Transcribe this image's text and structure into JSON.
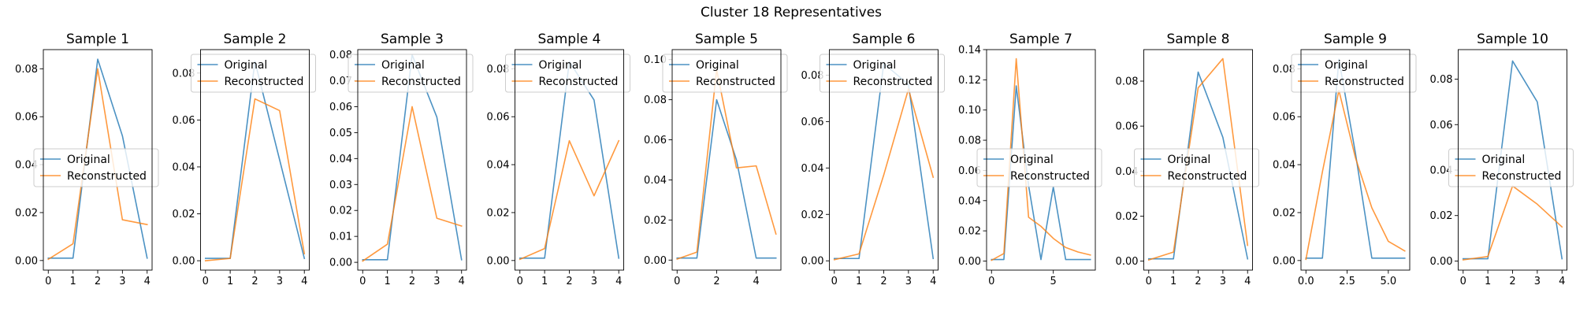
{
  "figure_title": "Cluster 18 Representatives",
  "colors": {
    "original": "#1f77b4",
    "reconstructed": "#ff7f0e"
  },
  "chart_data": [
    {
      "type": "line",
      "title": "Sample 1",
      "xlim": [
        -0.2,
        4.2
      ],
      "ylim": [
        -0.004,
        0.088
      ],
      "xticks": [
        0,
        1,
        2,
        3,
        4
      ],
      "xticklabels": [
        "0",
        "1",
        "2",
        "3",
        "4"
      ],
      "yticks": [
        0.0,
        0.02,
        0.04,
        0.06,
        0.08
      ],
      "yticklabels": [
        "0.00",
        "0.02",
        "0.04",
        "0.06",
        "0.08"
      ],
      "legend": "center-left",
      "series": [
        {
          "name": "Original",
          "x": [
            0,
            1,
            2,
            3,
            4
          ],
          "y": [
            0.001,
            0.001,
            0.084,
            0.052,
            0.001
          ]
        },
        {
          "name": "Reconstructed",
          "x": [
            0,
            1,
            2,
            3,
            4
          ],
          "y": [
            0.0005,
            0.007,
            0.08,
            0.017,
            0.015
          ]
        }
      ]
    },
    {
      "type": "line",
      "title": "Sample 2",
      "xlim": [
        -0.2,
        4.2
      ],
      "ylim": [
        -0.004,
        0.09
      ],
      "xticks": [
        0,
        1,
        2,
        3,
        4
      ],
      "xticklabels": [
        "0",
        "1",
        "2",
        "3",
        "4"
      ],
      "yticks": [
        0.0,
        0.02,
        0.04,
        0.06,
        0.08
      ],
      "yticklabels": [
        "0.00",
        "0.02",
        "0.04",
        "0.06",
        "0.08"
      ],
      "legend": "top-left",
      "series": [
        {
          "name": "Original",
          "x": [
            0,
            1,
            2,
            3,
            4
          ],
          "y": [
            0.001,
            0.001,
            0.085,
            0.043,
            0.001
          ]
        },
        {
          "name": "Reconstructed",
          "x": [
            0,
            1,
            2,
            3,
            4
          ],
          "y": [
            0.0,
            0.001,
            0.069,
            0.064,
            0.003
          ]
        }
      ]
    },
    {
      "type": "line",
      "title": "Sample 3",
      "xlim": [
        -0.2,
        4.2
      ],
      "ylim": [
        -0.003,
        0.082
      ],
      "xticks": [
        0,
        1,
        2,
        3,
        4
      ],
      "xticklabels": [
        "0",
        "1",
        "2",
        "3",
        "4"
      ],
      "yticks": [
        0.0,
        0.01,
        0.02,
        0.03,
        0.04,
        0.05,
        0.06,
        0.07,
        0.08
      ],
      "yticklabels": [
        "0.00",
        "0.01",
        "0.02",
        "0.03",
        "0.04",
        "0.05",
        "0.06",
        "0.07",
        "0.08"
      ],
      "legend": "top-left",
      "series": [
        {
          "name": "Original",
          "x": [
            0,
            1,
            2,
            3,
            4
          ],
          "y": [
            0.001,
            0.001,
            0.08,
            0.056,
            0.001
          ]
        },
        {
          "name": "Reconstructed",
          "x": [
            0,
            1,
            2,
            3,
            4
          ],
          "y": [
            0.0005,
            0.007,
            0.06,
            0.017,
            0.014
          ]
        }
      ]
    },
    {
      "type": "line",
      "title": "Sample 4",
      "xlim": [
        -0.2,
        4.2
      ],
      "ylim": [
        -0.004,
        0.088
      ],
      "xticks": [
        0,
        1,
        2,
        3,
        4
      ],
      "xticklabels": [
        "0",
        "1",
        "2",
        "3",
        "4"
      ],
      "yticks": [
        0.0,
        0.02,
        0.04,
        0.06,
        0.08
      ],
      "yticklabels": [
        "0.00",
        "0.02",
        "0.04",
        "0.06",
        "0.08"
      ],
      "legend": "top-left",
      "series": [
        {
          "name": "Original",
          "x": [
            0,
            1,
            2,
            3,
            4
          ],
          "y": [
            0.001,
            0.001,
            0.083,
            0.067,
            0.001
          ]
        },
        {
          "name": "Reconstructed",
          "x": [
            0,
            1,
            2,
            3,
            4
          ],
          "y": [
            0.0005,
            0.005,
            0.05,
            0.027,
            0.05
          ]
        }
      ]
    },
    {
      "type": "line",
      "title": "Sample 5",
      "xlim": [
        -0.25,
        5.25
      ],
      "ylim": [
        -0.005,
        0.105
      ],
      "xticks": [
        0,
        2,
        4
      ],
      "xticklabels": [
        "0",
        "2",
        "4"
      ],
      "yticks": [
        0.0,
        0.02,
        0.04,
        0.06,
        0.08,
        0.1
      ],
      "yticklabels": [
        "0.00",
        "0.02",
        "0.04",
        "0.06",
        "0.08",
        "0.10"
      ],
      "legend": "top-left",
      "series": [
        {
          "name": "Original",
          "x": [
            0,
            1,
            2,
            3,
            4,
            5
          ],
          "y": [
            0.001,
            0.001,
            0.08,
            0.05,
            0.001,
            0.001
          ]
        },
        {
          "name": "Reconstructed",
          "x": [
            0,
            1,
            2,
            3,
            4,
            5
          ],
          "y": [
            0.0005,
            0.004,
            0.095,
            0.046,
            0.047,
            0.013
          ]
        }
      ]
    },
    {
      "type": "line",
      "title": "Sample 6",
      "xlim": [
        -0.2,
        4.2
      ],
      "ylim": [
        -0.004,
        0.091
      ],
      "xticks": [
        0,
        1,
        2,
        3,
        4
      ],
      "xticklabels": [
        "0",
        "1",
        "2",
        "3",
        "4"
      ],
      "yticks": [
        0.0,
        0.02,
        0.04,
        0.06,
        0.08
      ],
      "yticklabels": [
        "0.00",
        "0.02",
        "0.04",
        "0.06",
        "0.08"
      ],
      "legend": "top-left",
      "series": [
        {
          "name": "Original",
          "x": [
            0,
            1,
            2,
            3,
            4
          ],
          "y": [
            0.001,
            0.001,
            0.085,
            0.076,
            0.001
          ]
        },
        {
          "name": "Reconstructed",
          "x": [
            0,
            1,
            2,
            3,
            4
          ],
          "y": [
            0.0005,
            0.003,
            0.037,
            0.074,
            0.036
          ]
        }
      ]
    },
    {
      "type": "line",
      "title": "Sample 7",
      "xlim": [
        -0.4,
        8.4
      ],
      "ylim": [
        -0.006,
        0.14
      ],
      "xticks": [
        0,
        5
      ],
      "xticklabels": [
        "0",
        "5"
      ],
      "yticks": [
        0.0,
        0.02,
        0.04,
        0.06,
        0.08,
        0.1,
        0.12,
        0.14
      ],
      "yticklabels": [
        "0.00",
        "0.02",
        "0.04",
        "0.06",
        "0.08",
        "0.10",
        "0.12",
        "0.14"
      ],
      "legend": "center-left",
      "series": [
        {
          "name": "Original",
          "x": [
            0,
            1,
            2,
            3,
            4,
            5,
            6,
            7,
            8
          ],
          "y": [
            0.001,
            0.001,
            0.116,
            0.05,
            0.001,
            0.049,
            0.001,
            0.001,
            0.001
          ]
        },
        {
          "name": "Reconstructed",
          "x": [
            0,
            1,
            2,
            3,
            4,
            5,
            6,
            7,
            8
          ],
          "y": [
            0.0005,
            0.005,
            0.134,
            0.029,
            0.023,
            0.015,
            0.009,
            0.006,
            0.004
          ]
        }
      ]
    },
    {
      "type": "line",
      "title": "Sample 8",
      "xlim": [
        -0.2,
        4.2
      ],
      "ylim": [
        -0.004,
        0.094
      ],
      "xticks": [
        0,
        1,
        2,
        3,
        4
      ],
      "xticklabels": [
        "0",
        "1",
        "2",
        "3",
        "4"
      ],
      "yticks": [
        0.0,
        0.02,
        0.04,
        0.06,
        0.08
      ],
      "yticklabels": [
        "0.00",
        "0.02",
        "0.04",
        "0.06",
        "0.08"
      ],
      "legend": "center-left",
      "series": [
        {
          "name": "Original",
          "x": [
            0,
            1,
            2,
            3,
            4
          ],
          "y": [
            0.001,
            0.001,
            0.084,
            0.055,
            0.001
          ]
        },
        {
          "name": "Reconstructed",
          "x": [
            0,
            1,
            2,
            3,
            4
          ],
          "y": [
            0.0005,
            0.004,
            0.077,
            0.09,
            0.007
          ]
        }
      ]
    },
    {
      "type": "line",
      "title": "Sample 9",
      "xlim": [
        -0.3,
        6.3
      ],
      "ylim": [
        -0.004,
        0.088
      ],
      "xticks": [
        0,
        2.5,
        5
      ],
      "xticklabels": [
        "0.0",
        "2.5",
        "5.0"
      ],
      "yticks": [
        0.0,
        0.02,
        0.04,
        0.06,
        0.08
      ],
      "yticklabels": [
        "0.00",
        "0.02",
        "0.04",
        "0.06",
        "0.08"
      ],
      "legend": "top-left",
      "series": [
        {
          "name": "Original",
          "x": [
            0,
            1,
            2,
            3,
            4,
            5,
            6
          ],
          "y": [
            0.001,
            0.001,
            0.084,
            0.045,
            0.001,
            0.001,
            0.001
          ]
        },
        {
          "name": "Reconstructed",
          "x": [
            0,
            1,
            2,
            3,
            4,
            5,
            6
          ],
          "y": [
            0.0005,
            0.037,
            0.071,
            0.043,
            0.022,
            0.008,
            0.004
          ]
        }
      ]
    },
    {
      "type": "line",
      "title": "Sample 10",
      "xlim": [
        -0.2,
        4.2
      ],
      "ylim": [
        -0.004,
        0.093
      ],
      "xticks": [
        0,
        1,
        2,
        3,
        4
      ],
      "xticklabels": [
        "0",
        "1",
        "2",
        "3",
        "4"
      ],
      "yticks": [
        0.0,
        0.02,
        0.04,
        0.06,
        0.08
      ],
      "yticklabels": [
        "0.00",
        "0.02",
        "0.04",
        "0.06",
        "0.08"
      ],
      "legend": "center-left",
      "series": [
        {
          "name": "Original",
          "x": [
            0,
            1,
            2,
            3,
            4
          ],
          "y": [
            0.001,
            0.001,
            0.088,
            0.07,
            0.001
          ]
        },
        {
          "name": "Reconstructed",
          "x": [
            0,
            1,
            2,
            3,
            4
          ],
          "y": [
            0.0005,
            0.002,
            0.033,
            0.025,
            0.015
          ]
        }
      ]
    }
  ]
}
